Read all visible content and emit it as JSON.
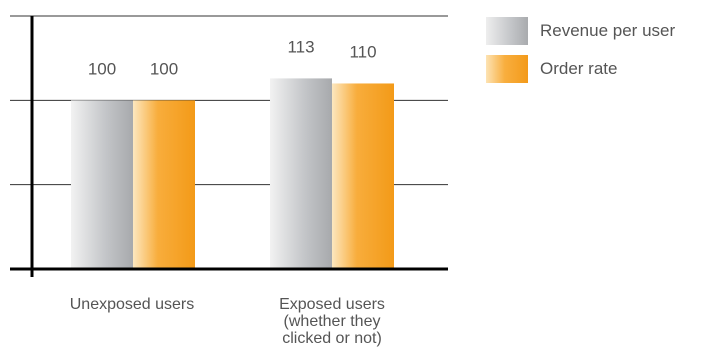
{
  "chart_data": {
    "type": "bar",
    "categories": [
      "Unexposed users",
      "Exposed users\n(whether they\nclicked or not)"
    ],
    "series": [
      {
        "name": "Revenue per user",
        "values": [
          100,
          113
        ]
      },
      {
        "name": "Order rate",
        "values": [
          100,
          110
        ]
      }
    ],
    "data_labels": [
      [
        "100",
        "100"
      ],
      [
        "113",
        "110"
      ]
    ],
    "ylim": [
      0,
      150
    ],
    "grid": true,
    "legend_position": "top-right",
    "title": "",
    "xlabel": "",
    "ylabel": ""
  },
  "colors": {
    "revenue_per_user": "#b9bbbe",
    "order_rate": "#f7a226",
    "gridline": "#333333",
    "text": "#555555"
  }
}
